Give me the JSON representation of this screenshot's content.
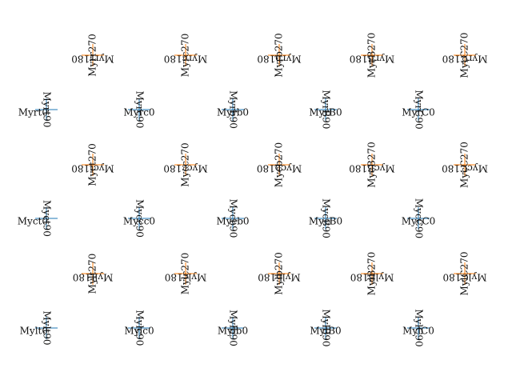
{
  "colors": {
    "cross_blue": "#1f77b4",
    "cross_orange": "#ff7f0e",
    "text": "#111111"
  },
  "markers": [
    {
      "id": "r1c1",
      "color": "orange",
      "labels": [
        "Myrr180",
        "Myrr270"
      ]
    },
    {
      "id": "r1c2",
      "color": "orange",
      "labels": [
        "Myrc180",
        "Myrc270"
      ]
    },
    {
      "id": "r1c3",
      "color": "orange",
      "labels": [
        "Myrb180",
        "Myrb270"
      ]
    },
    {
      "id": "r1c4",
      "color": "orange",
      "labels": [
        "MyrB180",
        "MyrB270"
      ]
    },
    {
      "id": "r1c5",
      "color": "orange",
      "labels": [
        "MyrC180",
        "MyrC270"
      ]
    },
    {
      "id": "r2c1",
      "color": "blue",
      "labels": [
        "Myrt0",
        "Myrt90"
      ]
    },
    {
      "id": "r2c2",
      "color": "blue",
      "labels": [
        "Myrc0",
        "Myrc90"
      ]
    },
    {
      "id": "r2c3",
      "color": "blue",
      "labels": [
        "Myrb0",
        "Myrb90"
      ]
    },
    {
      "id": "r2c4",
      "color": "blue",
      "labels": [
        "MyrB0",
        "MyrB90"
      ]
    },
    {
      "id": "r2c5",
      "color": "blue",
      "labels": [
        "MyrC0",
        "MyrC90"
      ]
    },
    {
      "id": "r3c1",
      "color": "orange",
      "labels": [
        "Myct180",
        "Myct270"
      ]
    },
    {
      "id": "r3c2",
      "color": "orange",
      "labels": [
        "Mycc180",
        "Mycc270"
      ]
    },
    {
      "id": "r3c3",
      "color": "orange",
      "labels": [
        "Mycb180",
        "Mycb270"
      ]
    },
    {
      "id": "r3c4",
      "color": "orange",
      "labels": [
        "MycB180",
        "MycB270"
      ]
    },
    {
      "id": "r3c5",
      "color": "orange",
      "labels": [
        "MycC180",
        "MycC270"
      ]
    },
    {
      "id": "r4c1",
      "color": "blue",
      "labels": [
        "Myct0",
        "Myct90"
      ]
    },
    {
      "id": "r4c2",
      "color": "blue",
      "labels": [
        "Mycc0",
        "Mycc90"
      ]
    },
    {
      "id": "r4c3",
      "color": "blue",
      "labels": [
        "Mycb0",
        "Mycb90"
      ]
    },
    {
      "id": "r4c4",
      "color": "blue",
      "labels": [
        "MycB0",
        "MycB90"
      ]
    },
    {
      "id": "r4c5",
      "color": "blue",
      "labels": [
        "MycC0",
        "MycC90"
      ]
    },
    {
      "id": "r5c1",
      "color": "orange",
      "labels": [
        "Mylt180",
        "Mylt270"
      ]
    },
    {
      "id": "r5c2",
      "color": "orange",
      "labels": [
        "Mylc180",
        "Mylc270"
      ]
    },
    {
      "id": "r5c3",
      "color": "orange",
      "labels": [
        "Mylb180",
        "Mylb270"
      ]
    },
    {
      "id": "r5c4",
      "color": "orange",
      "labels": [
        "MylB180",
        "MylB270"
      ]
    },
    {
      "id": "r5c5",
      "color": "orange",
      "labels": [
        "MylC180",
        "MylC270"
      ]
    },
    {
      "id": "r6c1",
      "color": "blue",
      "labels": [
        "Mylt0",
        "Mylt90"
      ]
    },
    {
      "id": "r6c2",
      "color": "blue",
      "labels": [
        "Mylc0",
        "Mylc90"
      ]
    },
    {
      "id": "r6c3",
      "color": "blue",
      "labels": [
        "Mylb0",
        "Mylb90"
      ]
    },
    {
      "id": "r6c4",
      "color": "blue",
      "labels": [
        "MylB0",
        "MylB90"
      ]
    },
    {
      "id": "r6c5",
      "color": "blue",
      "labels": [
        "MylC0",
        "MylC90"
      ]
    }
  ]
}
